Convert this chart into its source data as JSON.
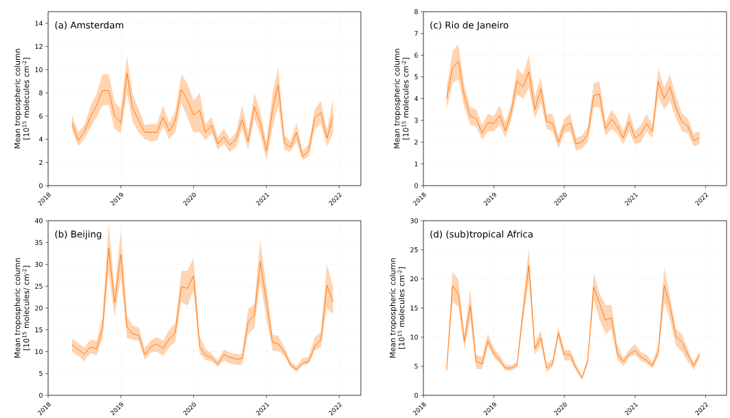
{
  "chart_data": [
    {
      "type": "line",
      "title": "(a) Amsterdam",
      "ylabel": "Mean tropospheric column [10$^{15}$ molecules cm$^{-2}$]",
      "grid": true,
      "x": [
        "2018-05",
        "2018-06",
        "2018-07",
        "2018-08",
        "2018-09",
        "2018-10",
        "2018-11",
        "2018-12",
        "2019-01",
        "2019-02",
        "2019-03",
        "2019-04",
        "2019-05",
        "2019-06",
        "2019-07",
        "2019-08",
        "2019-09",
        "2019-10",
        "2019-11",
        "2019-12",
        "2020-01",
        "2020-02",
        "2020-03",
        "2020-04",
        "2020-05",
        "2020-06",
        "2020-07",
        "2020-08",
        "2020-09",
        "2020-10",
        "2020-11",
        "2020-12",
        "2021-01",
        "2021-02",
        "2021-03",
        "2021-04",
        "2021-05",
        "2021-06",
        "2021-07",
        "2021-08",
        "2021-09",
        "2021-10",
        "2021-11",
        "2021-12"
      ],
      "xlim": [
        "2018-01-01",
        "2022-04-20"
      ],
      "xticks": [
        "2018",
        "2019",
        "2020",
        "2021",
        "2022"
      ],
      "ylim": [
        0,
        15
      ],
      "yticks": [
        0,
        2,
        4,
        6,
        8,
        10,
        12,
        14
      ],
      "series": [
        {
          "color": "#ff7000",
          "values": [
            5.4,
            3.9,
            4.6,
            5.9,
            6.9,
            8.2,
            8.2,
            6.0,
            5.4,
            9.7,
            6.7,
            5.6,
            4.6,
            4.6,
            4.6,
            5.9,
            4.7,
            5.6,
            8.3,
            7.4,
            6.1,
            6.5,
            4.6,
            5.2,
            3.6,
            4.2,
            3.5,
            4.0,
            5.7,
            3.8,
            6.8,
            5.4,
            3.0,
            6.6,
            8.7,
            3.7,
            3.3,
            4.6,
            2.5,
            3.0,
            5.9,
            6.3,
            4.1,
            6.0
          ],
          "lower": [
            4.8,
            3.4,
            4.0,
            5.0,
            5.9,
            6.9,
            7.0,
            4.9,
            4.5,
            8.0,
            5.5,
            4.6,
            4.0,
            3.8,
            3.9,
            5.1,
            4.0,
            4.6,
            7.1,
            5.9,
            4.6,
            4.6,
            3.9,
            4.5,
            3.1,
            3.6,
            2.9,
            3.3,
            4.9,
            3.1,
            5.8,
            4.4,
            2.2,
            5.0,
            6.9,
            3.1,
            2.9,
            3.8,
            2.2,
            2.5,
            4.9,
            5.3,
            3.4,
            4.5
          ],
          "upper": [
            6.1,
            4.6,
            5.2,
            6.8,
            7.9,
            9.6,
            9.6,
            7.2,
            6.6,
            11.2,
            7.9,
            6.6,
            5.2,
            5.3,
            5.3,
            6.9,
            5.4,
            6.4,
            9.6,
            8.8,
            7.3,
            8.0,
            5.3,
            5.9,
            4.2,
            4.9,
            4.0,
            4.6,
            6.9,
            4.5,
            8.0,
            6.4,
            3.7,
            8.0,
            10.2,
            4.4,
            3.8,
            5.4,
            3.0,
            3.6,
            6.6,
            7.3,
            4.8,
            7.5
          ]
        }
      ]
    },
    {
      "type": "line",
      "title": "(c) Rio de Janeiro",
      "ylabel": "Mean tropospheric column [10$^{15}$ molecules cm$^{-2}$]",
      "grid": true,
      "x": [
        "2018-05",
        "2018-06",
        "2018-07",
        "2018-08",
        "2018-09",
        "2018-10",
        "2018-11",
        "2018-12",
        "2019-01",
        "2019-02",
        "2019-03",
        "2019-04",
        "2019-05",
        "2019-06",
        "2019-07",
        "2019-08",
        "2019-09",
        "2019-10",
        "2019-11",
        "2019-12",
        "2020-01",
        "2020-02",
        "2020-03",
        "2020-04",
        "2020-05",
        "2020-06",
        "2020-07",
        "2020-08",
        "2020-09",
        "2020-10",
        "2020-11",
        "2020-12",
        "2021-01",
        "2021-02",
        "2021-03",
        "2021-04",
        "2021-05",
        "2021-06",
        "2021-07",
        "2021-08",
        "2021-09",
        "2021-10",
        "2021-11",
        "2021-12"
      ],
      "xlim": [
        "2018-01-01",
        "2022-04-20"
      ],
      "xticks": [
        "2018",
        "2019",
        "2020",
        "2021",
        "2022"
      ],
      "ylim": [
        0,
        8
      ],
      "yticks": [
        0,
        1,
        2,
        3,
        4,
        5,
        6,
        7,
        8
      ],
      "series": [
        {
          "color": "#ff7000",
          "values": [
            4.0,
            5.42,
            5.73,
            4.1,
            3.21,
            3.08,
            2.42,
            2.89,
            2.86,
            3.23,
            2.53,
            3.4,
            4.81,
            4.53,
            5.24,
            3.49,
            4.45,
            2.95,
            2.86,
            2.0,
            2.74,
            2.89,
            1.92,
            1.99,
            2.37,
            4.14,
            4.21,
            2.61,
            3.05,
            2.72,
            2.19,
            2.95,
            2.19,
            2.4,
            2.86,
            2.49,
            4.79,
            4.0,
            4.55,
            3.58,
            2.93,
            2.74,
            2.07,
            2.2
          ],
          "lower": [
            3.5,
            4.7,
            4.9,
            3.6,
            2.8,
            2.7,
            2.1,
            2.5,
            2.5,
            2.8,
            2.2,
            3.0,
            4.2,
            4.0,
            4.5,
            3.1,
            3.8,
            2.6,
            2.5,
            1.7,
            2.4,
            2.5,
            1.6,
            1.7,
            2.0,
            3.6,
            3.6,
            2.3,
            2.6,
            2.4,
            1.9,
            2.5,
            1.9,
            2.0,
            2.5,
            2.2,
            4.1,
            3.5,
            3.9,
            3.1,
            2.5,
            2.4,
            1.8,
            1.9
          ],
          "upper": [
            4.5,
            6.2,
            6.5,
            4.6,
            3.6,
            3.5,
            2.8,
            3.3,
            3.2,
            3.7,
            2.9,
            3.8,
            5.4,
            5.1,
            6.0,
            4.1,
            5.0,
            3.3,
            3.3,
            2.3,
            3.1,
            3.3,
            2.2,
            2.3,
            2.7,
            4.7,
            4.8,
            2.9,
            3.5,
            3.1,
            2.5,
            3.4,
            2.5,
            2.8,
            3.3,
            2.8,
            5.4,
            4.5,
            5.1,
            4.1,
            3.3,
            3.1,
            2.4,
            2.5
          ]
        }
      ]
    },
    {
      "type": "line",
      "title": "(b) Beijing",
      "ylabel": "Mean tropospheric column [10$^{15}$ molecules/ cm$^{-2}$]",
      "grid": true,
      "x": [
        "2018-05",
        "2018-06",
        "2018-07",
        "2018-08",
        "2018-09",
        "2018-10",
        "2018-11",
        "2018-12",
        "2019-01",
        "2019-02",
        "2019-03",
        "2019-04",
        "2019-05",
        "2019-06",
        "2019-07",
        "2019-08",
        "2019-09",
        "2019-10",
        "2019-11",
        "2019-12",
        "2020-01",
        "2020-02",
        "2020-03",
        "2020-04",
        "2020-05",
        "2020-06",
        "2020-07",
        "2020-08",
        "2020-09",
        "2020-10",
        "2020-11",
        "2020-12",
        "2021-01",
        "2021-02",
        "2021-03",
        "2021-04",
        "2021-05",
        "2021-06",
        "2021-07",
        "2021-08",
        "2021-09",
        "2021-10",
        "2021-11",
        "2021-12"
      ],
      "xlim": [
        "2018-01-01",
        "2022-04-20"
      ],
      "xticks": [
        "2018",
        "2019",
        "2020",
        "2021",
        "2022"
      ],
      "ylim": [
        0,
        40
      ],
      "yticks": [
        0,
        5,
        10,
        15,
        20,
        25,
        30,
        35,
        40
      ],
      "series": [
        {
          "color": "#ff7000",
          "values": [
            11.6,
            10.5,
            9.4,
            11.1,
            10.6,
            15.3,
            33.7,
            21.2,
            32.3,
            15.6,
            14.1,
            13.7,
            9.3,
            11.1,
            11.8,
            10.7,
            12.9,
            14.3,
            24.9,
            24.5,
            27.4,
            11.1,
            9.2,
            8.6,
            7.1,
            9.3,
            8.7,
            8.3,
            8.4,
            16.8,
            18.3,
            30.6,
            21.5,
            12.1,
            11.8,
            9.9,
            7.0,
            5.9,
            7.3,
            7.8,
            11.2,
            12.7,
            25.2,
            21.3
          ],
          "lower": [
            10.0,
            9.0,
            7.8,
            9.7,
            9.1,
            13.0,
            28.0,
            18.0,
            27.0,
            13.1,
            12.7,
            12.5,
            8.2,
            9.8,
            10.0,
            9.0,
            11.0,
            12.3,
            21.5,
            20.5,
            24.0,
            9.5,
            8.1,
            7.8,
            6.5,
            8.0,
            7.3,
            7.0,
            7.0,
            14.0,
            15.3,
            26.0,
            17.5,
            10.2,
            10.1,
            9.1,
            6.5,
            5.3,
            6.9,
            7.2,
            10.3,
            11.0,
            20.0,
            18.5
          ],
          "upper": [
            13.0,
            12.0,
            11.0,
            12.7,
            12.5,
            18.0,
            39.5,
            24.0,
            38.0,
            18.2,
            16.0,
            15.5,
            10.8,
            12.6,
            13.4,
            12.5,
            15.0,
            16.5,
            28.5,
            28.5,
            31.5,
            13.5,
            10.7,
            9.5,
            8.0,
            10.5,
            9.8,
            9.5,
            9.5,
            19.7,
            21.0,
            35.5,
            25.0,
            13.8,
            13.7,
            11.0,
            7.9,
            6.7,
            8.5,
            8.8,
            13.4,
            14.5,
            30.0,
            25.0
          ]
        }
      ]
    },
    {
      "type": "line",
      "title": "(d) (sub)tropical Africa",
      "ylabel": "Mean tropospheric column [10$^{15}$ molecules cm$^{-2}$]",
      "grid": true,
      "x": [
        "2018-05",
        "2018-06",
        "2018-07",
        "2018-08",
        "2018-09",
        "2018-10",
        "2018-11",
        "2018-12",
        "2019-01",
        "2019-02",
        "2019-03",
        "2019-04",
        "2019-05",
        "2019-06",
        "2019-07",
        "2019-08",
        "2019-09",
        "2019-10",
        "2019-11",
        "2019-12",
        "2020-01",
        "2020-02",
        "2020-03",
        "2020-04",
        "2020-05",
        "2020-06",
        "2020-07",
        "2020-08",
        "2020-09",
        "2020-10",
        "2020-11",
        "2020-12",
        "2021-01",
        "2021-02",
        "2021-03",
        "2021-04",
        "2021-05",
        "2021-06",
        "2021-07",
        "2021-08",
        "2021-09",
        "2021-10",
        "2021-11",
        "2021-12"
      ],
      "xlim": [
        "2018-01-01",
        "2022-04-20"
      ],
      "xticks": [
        "2018",
        "2019",
        "2020",
        "2021",
        "2022"
      ],
      "ylim": [
        0,
        30
      ],
      "yticks": [
        0,
        5,
        10,
        15,
        20,
        25,
        30
      ],
      "series": [
        {
          "color": "#ff7000",
          "values": [
            4.3,
            18.8,
            17.4,
            9.3,
            15.4,
            5.8,
            5.4,
            9.4,
            7.2,
            6.0,
            4.7,
            4.7,
            5.2,
            14.3,
            22.3,
            8.0,
            9.9,
            4.7,
            5.4,
            10.7,
            7.0,
            6.9,
            4.7,
            3.0,
            5.9,
            18.6,
            15.8,
            12.9,
            13.3,
            7.2,
            5.8,
            7.0,
            7.7,
            6.6,
            6.0,
            5.1,
            7.4,
            18.9,
            15.3,
            10.1,
            9.1,
            7.0,
            5.1,
            7.0
          ],
          "lower": [
            4.0,
            16.0,
            15.2,
            8.0,
            13.0,
            4.5,
            4.5,
            8.5,
            6.5,
            5.5,
            4.3,
            4.2,
            4.8,
            13.0,
            19.7,
            6.9,
            8.8,
            4.0,
            4.8,
            9.8,
            6.0,
            6.0,
            4.3,
            2.6,
            5.4,
            16.5,
            13.0,
            10.5,
            11.5,
            6.1,
            5.0,
            6.5,
            7.0,
            5.9,
            5.5,
            4.6,
            6.6,
            16.0,
            13.0,
            8.5,
            7.5,
            5.8,
            4.4,
            6.4
          ],
          "upper": [
            4.6,
            21.3,
            19.8,
            10.5,
            18.3,
            6.9,
            6.6,
            10.6,
            8.0,
            6.8,
            5.3,
            5.2,
            5.8,
            16.0,
            25.3,
            9.0,
            11.1,
            5.5,
            6.2,
            11.7,
            7.8,
            7.8,
            5.4,
            3.3,
            6.5,
            21.0,
            17.5,
            15.5,
            15.5,
            8.7,
            6.4,
            7.8,
            8.8,
            7.4,
            7.0,
            5.8,
            8.5,
            21.9,
            17.0,
            11.4,
            10.5,
            8.0,
            5.6,
            7.6
          ]
        }
      ]
    }
  ]
}
